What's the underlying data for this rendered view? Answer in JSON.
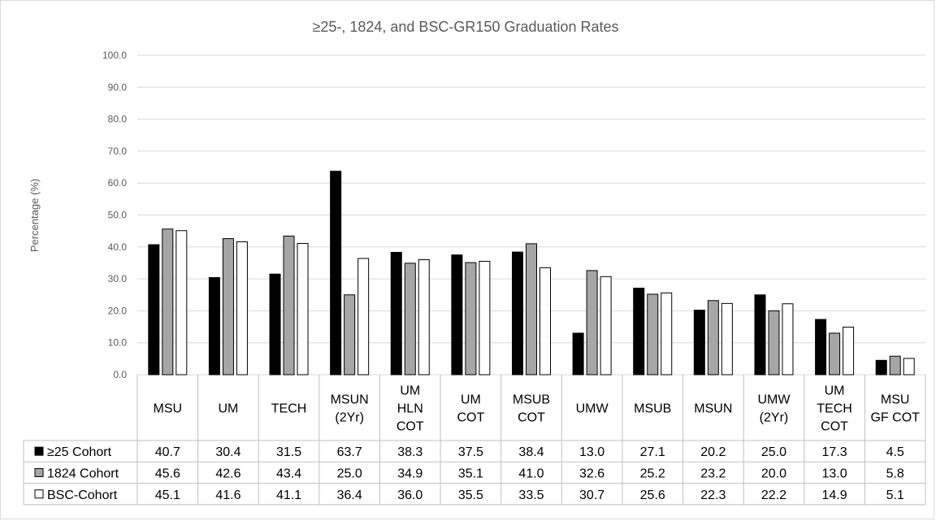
{
  "chart_data": {
    "type": "bar",
    "title": "≥25-, 1824, and BSC-GR150 Graduation Rates",
    "ylabel": "Percentage  (%)",
    "xlabel": "",
    "ylim": [
      0,
      100
    ],
    "yticks": [
      "0.0",
      "10.0",
      "20.0",
      "30.0",
      "40.0",
      "50.0",
      "60.0",
      "70.0",
      "80.0",
      "90.0",
      "100.0"
    ],
    "grid": true,
    "legend": "data-table-left",
    "categories": [
      [
        "MSU"
      ],
      [
        "UM"
      ],
      [
        "TECH"
      ],
      [
        "MSUN",
        "(2Yr)"
      ],
      [
        "UM",
        "HLN",
        "COT"
      ],
      [
        "UM",
        "COT"
      ],
      [
        "MSUB",
        "COT"
      ],
      [
        "UMW"
      ],
      [
        "MSUB"
      ],
      [
        "MSUN"
      ],
      [
        "UMW",
        "(2Yr)"
      ],
      [
        "UM",
        "TECH",
        "COT"
      ],
      [
        "MSU",
        "GF COT"
      ]
    ],
    "series": [
      {
        "name": "≥25 Cohort",
        "color": "#000000",
        "values": [
          40.7,
          30.4,
          31.5,
          63.7,
          38.3,
          37.5,
          38.4,
          13.0,
          27.1,
          20.2,
          25.0,
          17.3,
          4.5
        ],
        "labels": [
          "40.7",
          "30.4",
          "31.5",
          "63.7",
          "38.3",
          "37.5",
          "38.4",
          "13.0",
          "27.1",
          "20.2",
          "25.0",
          "17.3",
          "4.5"
        ]
      },
      {
        "name": "1824 Cohort",
        "color": "#a6a6a6",
        "values": [
          45.6,
          42.6,
          43.4,
          25.0,
          34.9,
          35.1,
          41.0,
          32.6,
          25.2,
          23.2,
          20.0,
          13.0,
          5.8
        ],
        "labels": [
          "45.6",
          "42.6",
          "43.4",
          "25.0",
          "34.9",
          "35.1",
          "41.0",
          "32.6",
          "25.2",
          "23.2",
          "20.0",
          "13.0",
          "5.8"
        ]
      },
      {
        "name": "BSC-Cohort",
        "color": "#ffffff",
        "values": [
          45.1,
          41.6,
          41.1,
          36.4,
          36.0,
          35.5,
          33.5,
          30.7,
          25.6,
          22.3,
          22.2,
          14.9,
          5.1
        ],
        "labels": [
          "45.1",
          "41.6",
          "41.1",
          "36.4",
          "36.0",
          "35.5",
          "33.5",
          "30.7",
          "25.6",
          "22.3",
          "22.2",
          "14.9",
          "5.1"
        ]
      }
    ]
  }
}
